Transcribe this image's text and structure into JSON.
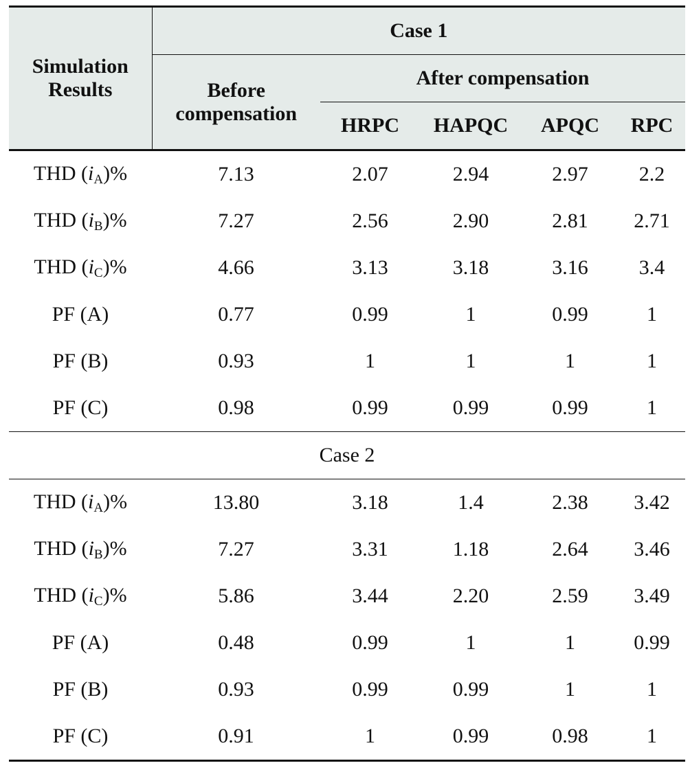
{
  "header": {
    "stub": "Simulation Results",
    "case1": "Case 1",
    "before": "Before compensation",
    "after": "After compensation",
    "methods": [
      "HRPC",
      "HAPQC",
      "APQC",
      "RPC"
    ]
  },
  "case1_rows": [
    {
      "label": {
        "pre": "THD (",
        "var": "i",
        "sub": "A",
        "post": ")%"
      },
      "values": [
        "7.13",
        "2.07",
        "2.94",
        "2.97",
        "2.2"
      ]
    },
    {
      "label": {
        "pre": "THD (",
        "var": "i",
        "sub": "B",
        "post": ")%"
      },
      "values": [
        "7.27",
        "2.56",
        "2.90",
        "2.81",
        "2.71"
      ]
    },
    {
      "label": {
        "pre": "THD (",
        "var": "i",
        "sub": "C",
        "post": ")%"
      },
      "values": [
        "4.66",
        "3.13",
        "3.18",
        "3.16",
        "3.4"
      ]
    },
    {
      "label": {
        "pre": "PF (A)"
      },
      "values": [
        "0.77",
        "0.99",
        "1",
        "0.99",
        "1"
      ]
    },
    {
      "label": {
        "pre": "PF (B)"
      },
      "values": [
        "0.93",
        "1",
        "1",
        "1",
        "1"
      ]
    },
    {
      "label": {
        "pre": "PF (C)"
      },
      "values": [
        "0.98",
        "0.99",
        "0.99",
        "0.99",
        "1"
      ]
    }
  ],
  "case2_title": "Case 2",
  "case2_rows": [
    {
      "label": {
        "pre": "THD (",
        "var": "i",
        "sub": "A",
        "post": ")%"
      },
      "values": [
        "13.80",
        "3.18",
        "1.4",
        "2.38",
        "3.42"
      ]
    },
    {
      "label": {
        "pre": "THD (",
        "var": "i",
        "sub": "B",
        "post": ")%"
      },
      "values": [
        "7.27",
        "3.31",
        "1.18",
        "2.64",
        "3.46"
      ]
    },
    {
      "label": {
        "pre": "THD (",
        "var": "i",
        "sub": "C",
        "post": ")%"
      },
      "values": [
        "5.86",
        "3.44",
        "2.20",
        "2.59",
        "3.49"
      ]
    },
    {
      "label": {
        "pre": "PF (A)"
      },
      "values": [
        "0.48",
        "0.99",
        "1",
        "1",
        "0.99"
      ]
    },
    {
      "label": {
        "pre": "PF (B)"
      },
      "values": [
        "0.93",
        "0.99",
        "0.99",
        "1",
        "1"
      ]
    },
    {
      "label": {
        "pre": "PF (C)"
      },
      "values": [
        "0.91",
        "1",
        "0.99",
        "0.98",
        "1"
      ]
    }
  ]
}
